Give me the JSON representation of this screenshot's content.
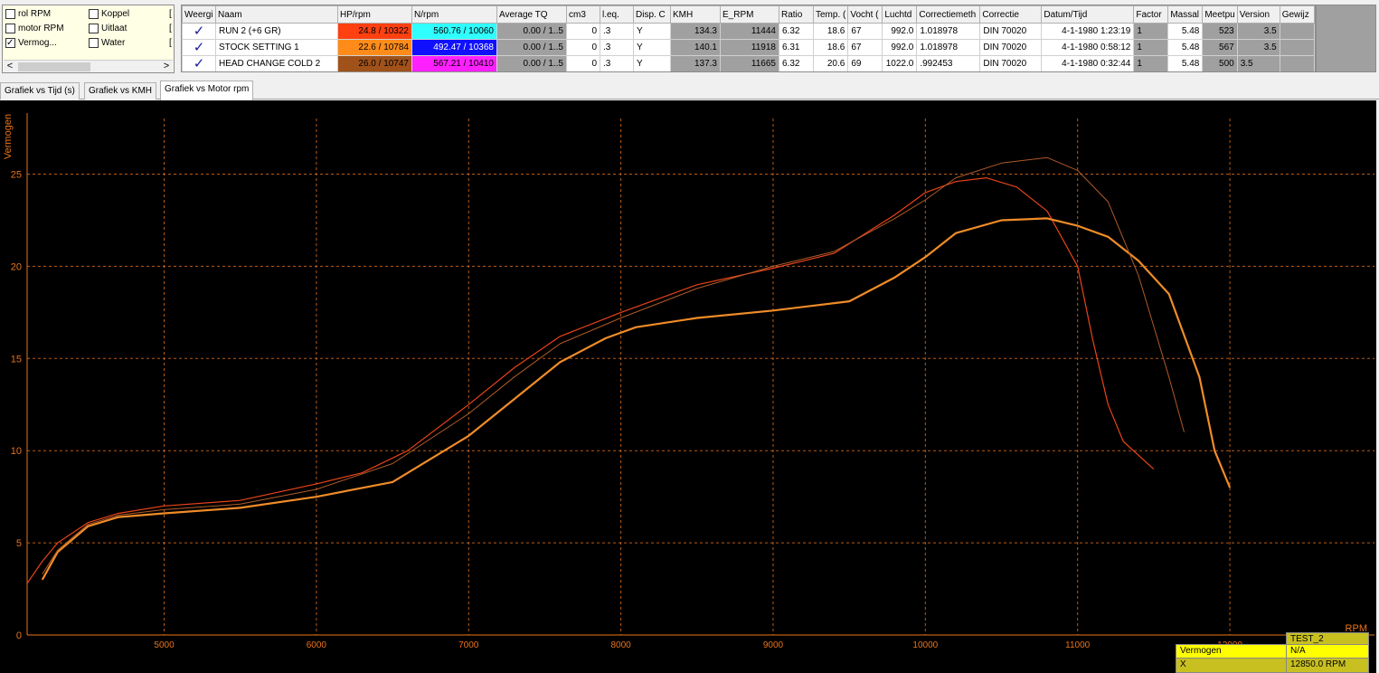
{
  "channels": {
    "items": [
      {
        "label": "rol RPM",
        "checked": false
      },
      {
        "label": "motor RPM",
        "checked": false
      },
      {
        "label": "Vermog...",
        "checked": true
      },
      {
        "label": "Koppel",
        "checked": false
      },
      {
        "label": "Uitlaat",
        "checked": false
      },
      {
        "label": "Water",
        "checked": false
      }
    ],
    "bracket": "[",
    "scroll_left": "<",
    "scroll_right": ">"
  },
  "table": {
    "headers": [
      "Weergi",
      "Naam",
      "HP/rpm",
      "N/rpm",
      "Average TQ",
      "cm3",
      "l.eq.",
      "Disp. C",
      "KMH",
      "E_RPM",
      "Ratio",
      "Temp. (",
      "Vocht (",
      "Luchtd",
      "Correctiemeth",
      "Correctie",
      "Datum/Tijd",
      "Factor",
      "Massal",
      "Meetpu",
      "Version",
      "Gewijz"
    ],
    "rows": [
      {
        "check": "✓",
        "naam": "RUN 2 (+6 GR)",
        "hp": "24.8 / 10322",
        "hp_color": "#ff4010",
        "n": "560.76 / 10060",
        "n_color": "#30ffff",
        "n_text": "#000000",
        "avg": "0.00 / 1..5",
        "cm3": "0",
        "leq": ".3",
        "disp": "Y",
        "kmh": "134.3",
        "erpm": "11444",
        "ratio": "6.32",
        "temp": "18.6",
        "vocht": "67",
        "lucht": "992.0",
        "corrmeth": "1.018978",
        "corr": "DIN 70020",
        "datum": "4-1-1980 1:23:19",
        "factor": "1",
        "massa": "5.48",
        "meet": "523",
        "version": "3.5",
        "gew": ""
      },
      {
        "check": "✓",
        "naam": "STOCK SETTING 1",
        "hp": "22.6 / 10784",
        "hp_color": "#ff8c1a",
        "n": "492.47 / 10368",
        "n_color": "#1010ff",
        "n_text": "#ffffff",
        "avg": "0.00 / 1..5",
        "cm3": "0",
        "leq": ".3",
        "disp": "Y",
        "kmh": "140.1",
        "erpm": "11918",
        "ratio": "6.31",
        "temp": "18.6",
        "vocht": "67",
        "lucht": "992.0",
        "corrmeth": "1.018978",
        "corr": "DIN 70020",
        "datum": "4-1-1980 0:58:12",
        "factor": "1",
        "massa": "5.48",
        "meet": "567",
        "version": "3.5",
        "gew": ""
      },
      {
        "check": "✓",
        "naam": "HEAD CHANGE COLD 2",
        "hp": "26.0 / 10747",
        "hp_color": "#a0521a",
        "n": "567.21 / 10410",
        "n_color": "#ff20ff",
        "n_text": "#000000",
        "avg": "0.00 / 1..5",
        "cm3": "0",
        "leq": ".3",
        "disp": "Y",
        "kmh": "137.3",
        "erpm": "11665",
        "ratio": "6.32",
        "temp": "20.6",
        "vocht": "69",
        "lucht": "1022.0",
        "corrmeth": ".992453",
        "corr": "DIN 70020",
        "datum": "4-1-1980 0:32:44",
        "factor": "1",
        "massa": "5.48",
        "meet": "500",
        "version": "3.5",
        "gew": ""
      }
    ]
  },
  "tabs": [
    {
      "label": "Grafiek vs Tijd (s)",
      "active": false
    },
    {
      "label": "Grafiek vs KMH",
      "active": false
    },
    {
      "label": "Grafiek vs Motor rpm",
      "active": true
    }
  ],
  "chart_data": {
    "type": "line",
    "ylabel": "Vermogen",
    "xlabel": "RPM",
    "xlim": [
      4100,
      12950
    ],
    "ylim": [
      0,
      29
    ],
    "xticks": [
      5000,
      6000,
      7000,
      8000,
      9000,
      10000,
      11000,
      12000
    ],
    "yticks": [
      0,
      5,
      10,
      15,
      20,
      25
    ],
    "grid": true,
    "axis_color": "#e8731a",
    "series": [
      {
        "name": "RUN 2 (+6 GR)",
        "color": "#e8431a",
        "width": 1.2,
        "x": [
          4100,
          4200,
          4300,
          4500,
          4700,
          5000,
          5500,
          6000,
          6300,
          6600,
          7000,
          7300,
          7600,
          8000,
          8500,
          9000,
          9400,
          9800,
          10000,
          10200,
          10400,
          10600,
          10800,
          11000,
          11100,
          11200,
          11300,
          11500
        ],
        "y": [
          2.8,
          4.0,
          5.0,
          6.1,
          6.6,
          7.0,
          7.3,
          8.2,
          8.8,
          10.0,
          12.5,
          14.5,
          16.2,
          17.5,
          19.0,
          19.9,
          20.7,
          22.8,
          24.0,
          24.6,
          24.8,
          24.3,
          23.0,
          20.0,
          16.0,
          12.5,
          10.5,
          9.0
        ]
      },
      {
        "name": "STOCK SETTING 1",
        "color": "#f08c28",
        "width": 2.2,
        "x": [
          4200,
          4300,
          4500,
          4700,
          5000,
          5500,
          6000,
          6500,
          7000,
          7300,
          7600,
          7900,
          8100,
          8500,
          9000,
          9500,
          9800,
          10000,
          10200,
          10500,
          10800,
          11000,
          11200,
          11400,
          11600,
          11800,
          11900,
          12000
        ],
        "y": [
          3.0,
          4.5,
          5.9,
          6.4,
          6.6,
          6.9,
          7.5,
          8.3,
          10.8,
          12.8,
          14.8,
          16.1,
          16.7,
          17.2,
          17.6,
          18.1,
          19.4,
          20.5,
          21.8,
          22.5,
          22.6,
          22.2,
          21.6,
          20.3,
          18.5,
          14.0,
          10.0,
          8.0
        ]
      },
      {
        "name": "HEAD CHANGE COLD 2",
        "color": "#b05a28",
        "width": 1.0,
        "x": [
          4200,
          4300,
          4500,
          4700,
          5000,
          5500,
          6000,
          6500,
          7000,
          7300,
          7600,
          8000,
          8500,
          9000,
          9400,
          9800,
          10000,
          10200,
          10500,
          10800,
          11000,
          11200,
          11400,
          11600,
          11700
        ],
        "y": [
          3.3,
          4.6,
          6.0,
          6.5,
          6.8,
          7.1,
          7.9,
          9.3,
          12.0,
          14.0,
          15.8,
          17.2,
          18.8,
          20.0,
          20.8,
          22.6,
          23.6,
          24.8,
          25.6,
          25.9,
          25.2,
          23.5,
          19.5,
          14.0,
          11.0
        ]
      }
    ]
  },
  "readout": {
    "title": "TEST_2",
    "label1": "Vermogen",
    "value1": "N/A",
    "label2": "X",
    "value2": "12850.0 RPM"
  }
}
